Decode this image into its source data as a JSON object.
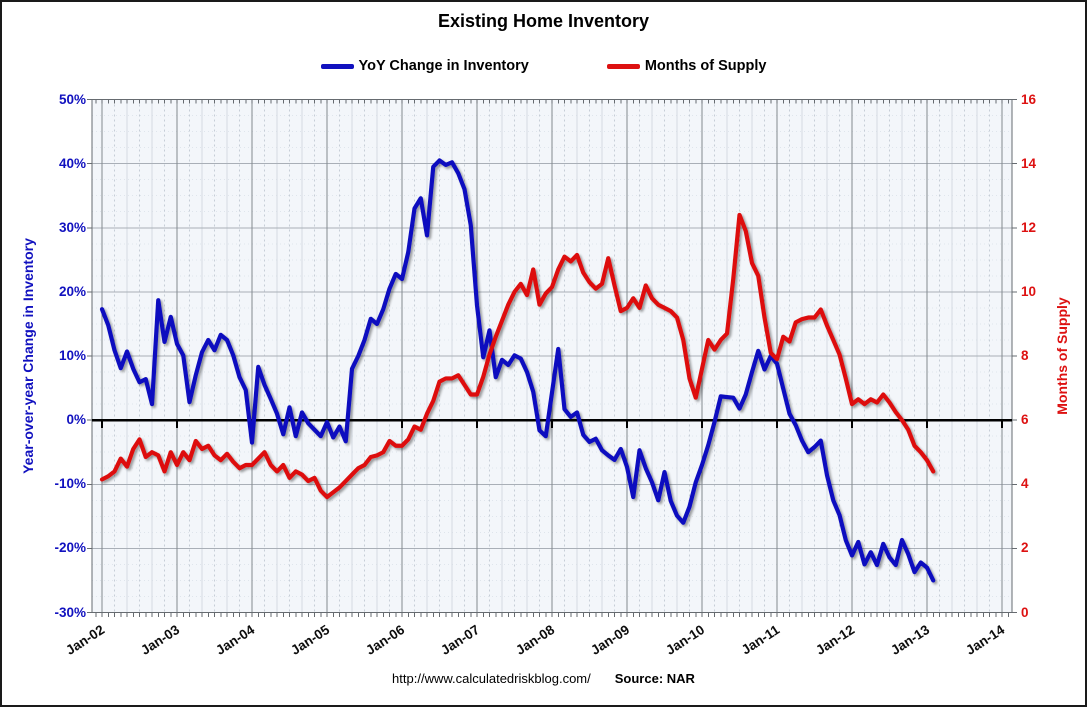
{
  "page": {
    "title": "Existing Home Inventory",
    "footer": {
      "url": "http://www.calculatedriskblog.com/",
      "source": "Source: NAR"
    }
  },
  "legend": [
    {
      "label": "YoY Change in Inventory",
      "color": "#1111BF"
    },
    {
      "label": "Months of Supply",
      "color": "#DD1111"
    }
  ],
  "chart_data": {
    "type": "line",
    "title": "Existing Home Inventory",
    "x_axis": {
      "start": "2002-01",
      "interval": "monthly",
      "tick_labels": [
        "Jan-02",
        "Jan-03",
        "Jan-04",
        "Jan-05",
        "Jan-06",
        "Jan-07",
        "Jan-08",
        "Jan-09",
        "Jan-10",
        "Jan-11",
        "Jan-12",
        "Jan-13",
        "Jan-14"
      ]
    },
    "left_axis": {
      "label": "Year-over-year Change in Inventory",
      "min": -30,
      "max": 50,
      "tick_step": 10,
      "unit": "%",
      "tick_labels": [
        "50%",
        "40%",
        "30%",
        "20%",
        "10%",
        "0%",
        "-10%",
        "-20%",
        "-30%"
      ],
      "color": "#1111BF"
    },
    "right_axis": {
      "label": "Months of Supply",
      "min": 0,
      "max": 16,
      "tick_step": 2,
      "unit": "months",
      "tick_labels": [
        "16",
        "14",
        "12",
        "10",
        "8",
        "6",
        "4",
        "2",
        "0"
      ],
      "color": "#DD1111"
    },
    "grid": true,
    "zero_line": true,
    "plot_bg": "#f3f6fa",
    "series": [
      {
        "name": "YoY Change in Inventory",
        "axis": "left",
        "color": "#1111BF",
        "unit": "%",
        "x_start": "2002-01",
        "values": [
          17.3,
          14.8,
          10.9,
          8.1,
          10.7,
          8.0,
          5.9,
          6.4,
          2.5,
          18.7,
          12.2,
          16.1,
          11.9,
          10.1,
          2.8,
          7.0,
          10.6,
          12.5,
          10.9,
          13.3,
          12.5,
          10.1,
          6.7,
          4.7,
          -3.5,
          8.3,
          5.5,
          3.3,
          1.0,
          -2.2,
          2.0,
          -2.5,
          1.2,
          -0.5,
          -1.5,
          -2.5,
          -0.3,
          -2.7,
          -1.0,
          -3.3,
          8.0,
          10.0,
          12.5,
          15.8,
          15.0,
          17.3,
          20.5,
          22.8,
          22.0,
          26.2,
          33.0,
          34.6,
          28.8,
          39.5,
          40.5,
          39.8,
          40.2,
          38.5,
          36.0,
          30.4,
          17.9,
          9.8,
          14.0,
          6.7,
          9.4,
          8.6,
          10.1,
          9.6,
          7.5,
          4.4,
          -1.6,
          -2.5,
          4.3,
          11.1,
          1.7,
          0.5,
          1.2,
          -2.3,
          -3.4,
          -2.9,
          -4.7,
          -5.5,
          -6.2,
          -4.5,
          -7.3,
          -12.0,
          -4.7,
          -7.5,
          -9.7,
          -12.5,
          -8.1,
          -12.6,
          -14.9,
          -16.0,
          -13.5,
          -9.7,
          -7.0,
          -3.9,
          -0.3,
          3.7,
          3.6,
          3.5,
          1.8,
          4.0,
          7.5,
          10.8,
          7.9,
          10.0,
          8.8,
          4.9,
          1.0,
          -0.8,
          -3.2,
          -5.0,
          -4.2,
          -3.2,
          -8.6,
          -12.5,
          -14.8,
          -18.7,
          -21.1,
          -19.0,
          -22.5,
          -20.6,
          -22.6,
          -19.3,
          -21.4,
          -22.6,
          -18.7,
          -20.9,
          -23.7,
          -22.2,
          -23.0,
          -25.0
        ]
      },
      {
        "name": "Months of Supply",
        "axis": "right",
        "color": "#DD1111",
        "unit": "months",
        "x_start": "2002-01",
        "values": [
          4.15,
          4.25,
          4.4,
          4.8,
          4.55,
          5.1,
          5.4,
          4.85,
          5.0,
          4.9,
          4.4,
          5.0,
          4.6,
          5.0,
          4.75,
          5.35,
          5.1,
          5.2,
          4.9,
          4.75,
          4.95,
          4.7,
          4.5,
          4.6,
          4.6,
          4.8,
          5.0,
          4.6,
          4.4,
          4.6,
          4.2,
          4.4,
          4.3,
          4.1,
          4.2,
          3.8,
          3.6,
          3.75,
          3.9,
          4.1,
          4.3,
          4.5,
          4.6,
          4.85,
          4.9,
          5.0,
          5.35,
          5.2,
          5.2,
          5.4,
          5.8,
          5.7,
          6.2,
          6.6,
          7.2,
          7.3,
          7.3,
          7.4,
          7.1,
          6.8,
          6.8,
          7.35,
          8.05,
          8.6,
          9.1,
          9.6,
          10.0,
          10.25,
          9.9,
          10.7,
          9.6,
          9.95,
          10.15,
          10.7,
          11.1,
          10.95,
          11.15,
          10.6,
          10.3,
          10.1,
          10.25,
          11.05,
          10.2,
          9.4,
          9.5,
          9.8,
          9.5,
          10.2,
          9.8,
          9.6,
          9.5,
          9.4,
          9.2,
          8.5,
          7.3,
          6.7,
          7.6,
          8.5,
          8.2,
          8.5,
          8.7,
          10.4,
          12.4,
          11.9,
          10.9,
          10.5,
          9.2,
          8.1,
          7.9,
          8.6,
          8.45,
          9.05,
          9.15,
          9.2,
          9.2,
          9.45,
          8.95,
          8.5,
          8.05,
          7.3,
          6.5,
          6.65,
          6.5,
          6.65,
          6.55,
          6.8,
          6.55,
          6.25,
          6.0,
          5.7,
          5.2,
          5.0,
          4.75,
          4.4
        ]
      }
    ]
  }
}
